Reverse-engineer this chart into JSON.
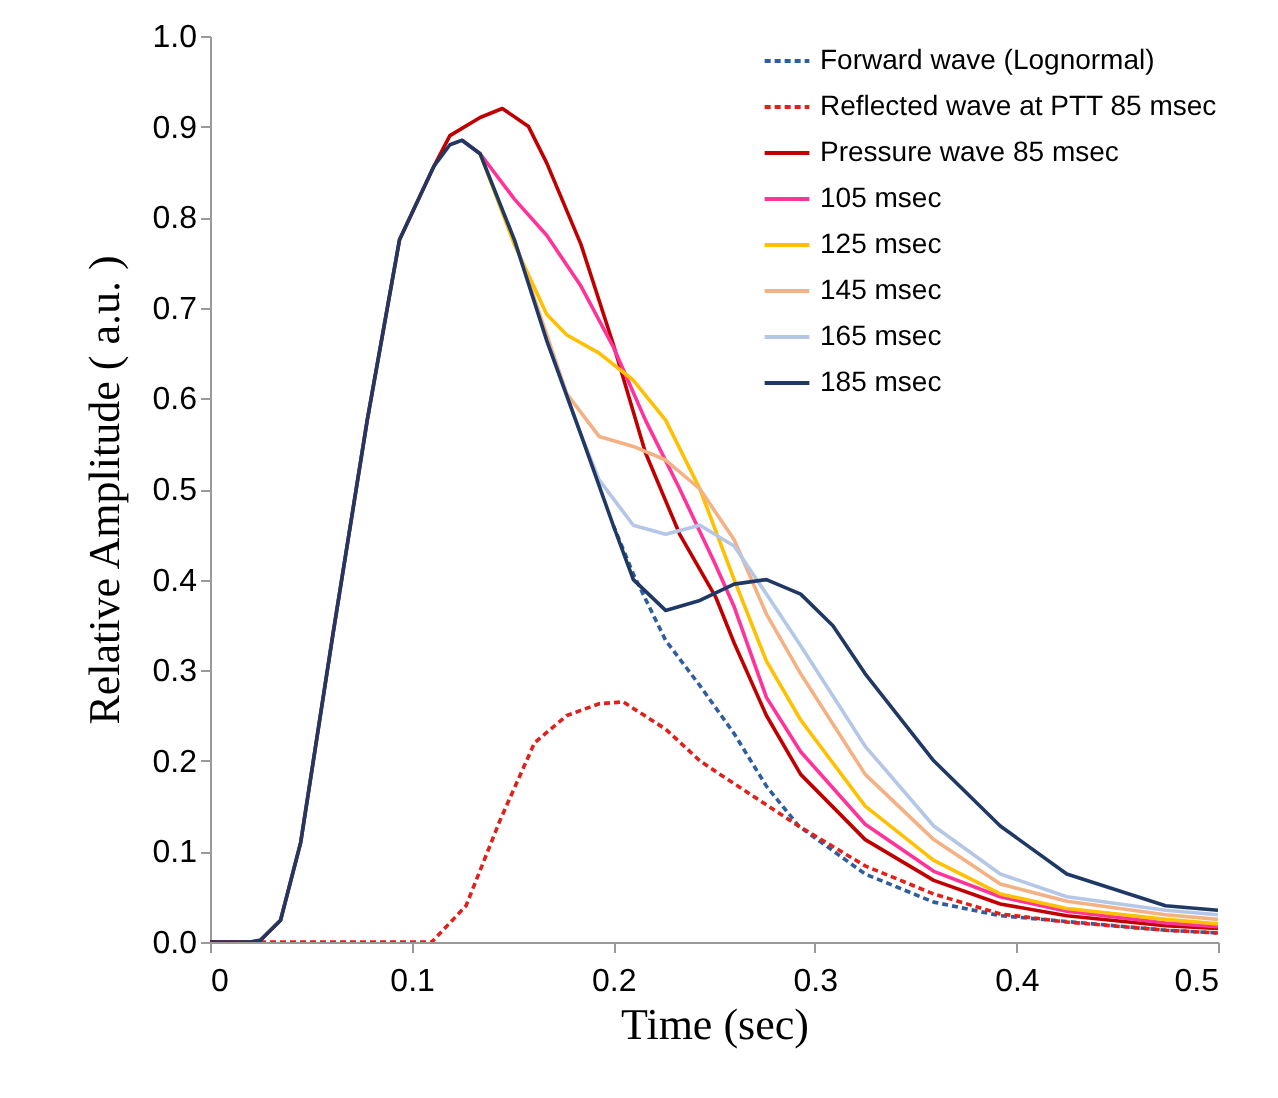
{
  "chart_data": {
    "type": "line",
    "xlabel": "Time (sec)",
    "ylabel": "Relative  Amplitude  ( a.u. )",
    "xlim": [
      0,
      0.5
    ],
    "ylim": [
      0,
      1.0
    ],
    "xticks": [
      0,
      0.1,
      0.2,
      0.3,
      0.4,
      0.5
    ],
    "yticks": [
      {
        "value": 0,
        "label": "0.0"
      },
      0.1,
      0.2,
      0.3,
      0.4,
      0.5,
      0.6,
      0.7,
      0.8,
      0.9,
      {
        "value": 1,
        "label": "1.0"
      }
    ],
    "grid": false,
    "legend": "top right",
    "marker": "none",
    "series": [
      {
        "name": "Forward wave (Lognormal)",
        "color": "#2e5e9e",
        "line_style": "dashed",
        "x": [
          0.2,
          0.21,
          0.226,
          0.243,
          0.26,
          0.276,
          0.292,
          0.325,
          0.359,
          0.392,
          0.474,
          0.5
        ],
        "values": [
          0.46,
          0.406,
          0.333,
          0.283,
          0.23,
          0.172,
          0.128,
          0.075,
          0.044,
          0.029,
          0.013,
          0.01
        ]
      },
      {
        "name": "Reflected wave at PTT 85 msec",
        "color": "#e0201b",
        "line_style": "dashed",
        "x": [
          0,
          0.11,
          0.127,
          0.144,
          0.161,
          0.177,
          0.193,
          0.205,
          0.226,
          0.243,
          0.253,
          0.292,
          0.325,
          0.359,
          0.392,
          0.425,
          0.474,
          0.5
        ],
        "values": [
          0,
          0,
          0.04,
          0.135,
          0.22,
          0.25,
          0.263,
          0.265,
          0.235,
          0.2,
          0.185,
          0.128,
          0.084,
          0.053,
          0.031,
          0.022,
          0.013,
          0.01
        ]
      },
      {
        "name": "Pressure wave 85 msec",
        "color": "#c00000",
        "line_style": "solid",
        "x": [
          0,
          0.02,
          0.025,
          0.035,
          0.045,
          0.061,
          0.078,
          0.094,
          0.111,
          0.119,
          0.134,
          0.145,
          0.158,
          0.167,
          0.184,
          0.2,
          0.216,
          0.233,
          0.251,
          0.26,
          0.276,
          0.293,
          0.325,
          0.359,
          0.392,
          0.425,
          0.474,
          0.5
        ],
        "values": [
          0,
          0,
          0.002,
          0.024,
          0.11,
          0.34,
          0.576,
          0.775,
          0.856,
          0.89,
          0.91,
          0.92,
          0.9,
          0.86,
          0.77,
          0.66,
          0.54,
          0.45,
          0.38,
          0.33,
          0.25,
          0.185,
          0.113,
          0.068,
          0.042,
          0.029,
          0.018,
          0.015
        ]
      },
      {
        "name": "105 msec",
        "color": "#ff3399",
        "line_style": "solid",
        "x": [
          0.125,
          0.134,
          0.151,
          0.167,
          0.184,
          0.2,
          0.216,
          0.233,
          0.25,
          0.26,
          0.276,
          0.293,
          0.325,
          0.359,
          0.392,
          0.425,
          0.474,
          0.5
        ],
        "values": [
          0.885,
          0.87,
          0.82,
          0.78,
          0.724,
          0.657,
          0.576,
          0.5,
          0.42,
          0.37,
          0.27,
          0.21,
          0.13,
          0.078,
          0.05,
          0.034,
          0.021,
          0.017
        ]
      },
      {
        "name": "125 msec",
        "color": "#ffc000",
        "line_style": "solid",
        "x": [
          0.134,
          0.151,
          0.167,
          0.177,
          0.193,
          0.21,
          0.226,
          0.243,
          0.26,
          0.276,
          0.293,
          0.325,
          0.359,
          0.392,
          0.425,
          0.474,
          0.5
        ],
        "values": [
          0.87,
          0.77,
          0.693,
          0.67,
          0.65,
          0.62,
          0.576,
          0.5,
          0.4,
          0.31,
          0.245,
          0.15,
          0.09,
          0.053,
          0.037,
          0.025,
          0.02
        ]
      },
      {
        "name": "145 msec",
        "color": "#f4b183",
        "line_style": "solid",
        "x": [
          0.151,
          0.177,
          0.193,
          0.21,
          0.226,
          0.243,
          0.26,
          0.276,
          0.293,
          0.325,
          0.359,
          0.392,
          0.425,
          0.474,
          0.5
        ],
        "values": [
          0.775,
          0.605,
          0.558,
          0.547,
          0.532,
          0.5,
          0.444,
          0.362,
          0.296,
          0.185,
          0.113,
          0.064,
          0.045,
          0.03,
          0.025
        ]
      },
      {
        "name": "165 msec",
        "color": "#b4c7e7",
        "line_style": "solid",
        "x": [
          0.167,
          0.184,
          0.193,
          0.21,
          0.226,
          0.243,
          0.26,
          0.276,
          0.293,
          0.325,
          0.359,
          0.392,
          0.425,
          0.474,
          0.5
        ],
        "values": [
          0.664,
          0.56,
          0.51,
          0.46,
          0.45,
          0.46,
          0.437,
          0.384,
          0.327,
          0.216,
          0.128,
          0.075,
          0.05,
          0.035,
          0.03
        ]
      },
      {
        "name": "185 msec",
        "color": "#1f3864",
        "line_style": "solid",
        "x": [
          0,
          0.02,
          0.025,
          0.035,
          0.045,
          0.061,
          0.078,
          0.094,
          0.111,
          0.119,
          0.125,
          0.134,
          0.151,
          0.167,
          0.184,
          0.2,
          0.21,
          0.226,
          0.243,
          0.26,
          0.276,
          0.293,
          0.309,
          0.325,
          0.359,
          0.392,
          0.425,
          0.474,
          0.5
        ],
        "values": [
          0,
          0,
          0.002,
          0.024,
          0.11,
          0.34,
          0.576,
          0.775,
          0.856,
          0.88,
          0.885,
          0.87,
          0.775,
          0.664,
          0.56,
          0.46,
          0.4,
          0.366,
          0.377,
          0.395,
          0.4,
          0.384,
          0.349,
          0.296,
          0.2,
          0.128,
          0.075,
          0.04,
          0.035
        ]
      }
    ]
  }
}
